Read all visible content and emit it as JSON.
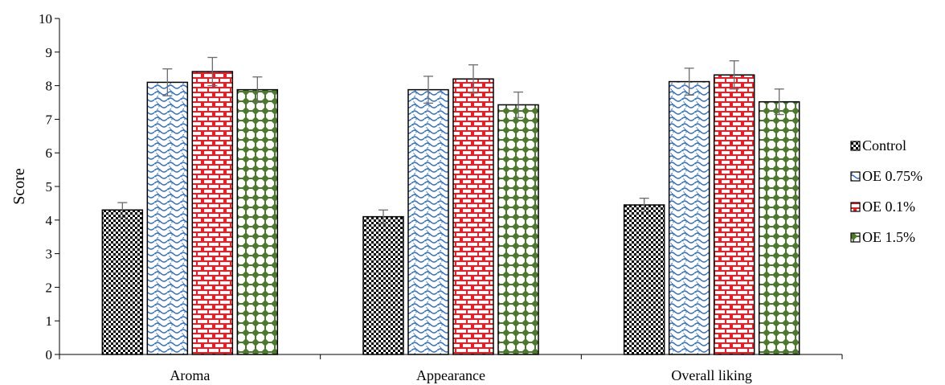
{
  "chart_data": {
    "type": "bar",
    "categories": [
      "Aroma",
      "Appearance",
      "Overall liking"
    ],
    "ylabel": "Score",
    "xlabel": "",
    "ylim": [
      0,
      10
    ],
    "yticks": [
      0,
      1,
      2,
      3,
      4,
      5,
      6,
      7,
      8,
      9,
      10
    ],
    "legend_position": "right",
    "series": [
      {
        "name": "Control",
        "values": [
          4.3,
          4.1,
          4.45
        ],
        "errors": [
          0.22,
          0.2,
          0.2
        ],
        "pattern": "checker",
        "color": "#000000"
      },
      {
        "name": "OE 0.75%",
        "values": [
          8.1,
          7.88,
          8.12
        ],
        "errors": [
          0.4,
          0.4,
          0.4
        ],
        "pattern": "wave",
        "color": "#2f6fc9"
      },
      {
        "name": "OE 0.1%",
        "values": [
          8.42,
          8.2,
          8.32
        ],
        "errors": [
          0.42,
          0.42,
          0.42
        ],
        "pattern": "brick",
        "color": "#ee1c24"
      },
      {
        "name": "OE 1.5%",
        "values": [
          7.88,
          7.43,
          7.52
        ],
        "errors": [
          0.38,
          0.38,
          0.38
        ],
        "pattern": "diamond",
        "color": "#4a7a2a"
      }
    ]
  }
}
